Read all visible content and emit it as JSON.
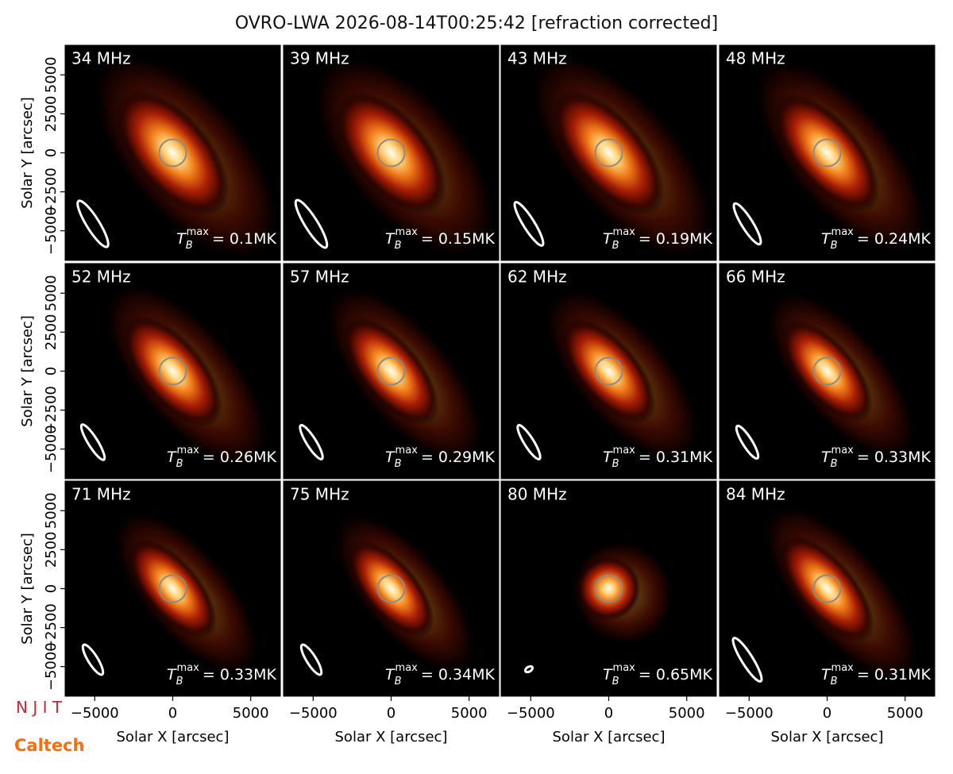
{
  "chart_data": {
    "type": "image-grid",
    "title": "OVRO-LWA 2026-08-14T00:25:42 [refraction corrected]",
    "xlabel": "Solar X [arcsec]",
    "ylabel": "Solar Y [arcsec]",
    "xlim": [
      -6900,
      6900
    ],
    "ylim": [
      -6900,
      6900
    ],
    "xticks": [
      {
        "value": -5000,
        "label": "−5000"
      },
      0,
      5000
    ],
    "yticks": [
      {
        "value": -5000,
        "label": "−5000"
      },
      {
        "value": -2500,
        "label": "−2500"
      },
      0,
      2500,
      5000
    ],
    "tb": {
      "symbol": "T",
      "sub": "B",
      "sup": "max"
    },
    "panels": [
      {
        "label": "34 MHz",
        "tmax": "= 0.1MK"
      },
      {
        "label": "39 MHz",
        "tmax": "= 0.15MK"
      },
      {
        "label": "43 MHz",
        "tmax": "= 0.19MK"
      },
      {
        "label": "48 MHz",
        "tmax": "= 0.24MK"
      },
      {
        "label": "52 MHz",
        "tmax": "= 0.26MK"
      },
      {
        "label": "57 MHz",
        "tmax": "= 0.29MK"
      },
      {
        "label": "62 MHz",
        "tmax": "= 0.31MK"
      },
      {
        "label": "66 MHz",
        "tmax": "= 0.33MK"
      },
      {
        "label": "71 MHz",
        "tmax": "= 0.33MK"
      },
      {
        "label": "75 MHz",
        "tmax": "= 0.34MK"
      },
      {
        "label": "80 MHz",
        "tmax": "= 0.65MK"
      },
      {
        "label": "84 MHz",
        "tmax": "= 0.31MK"
      }
    ],
    "logos": [
      "N J I T",
      "Caltech"
    ]
  }
}
